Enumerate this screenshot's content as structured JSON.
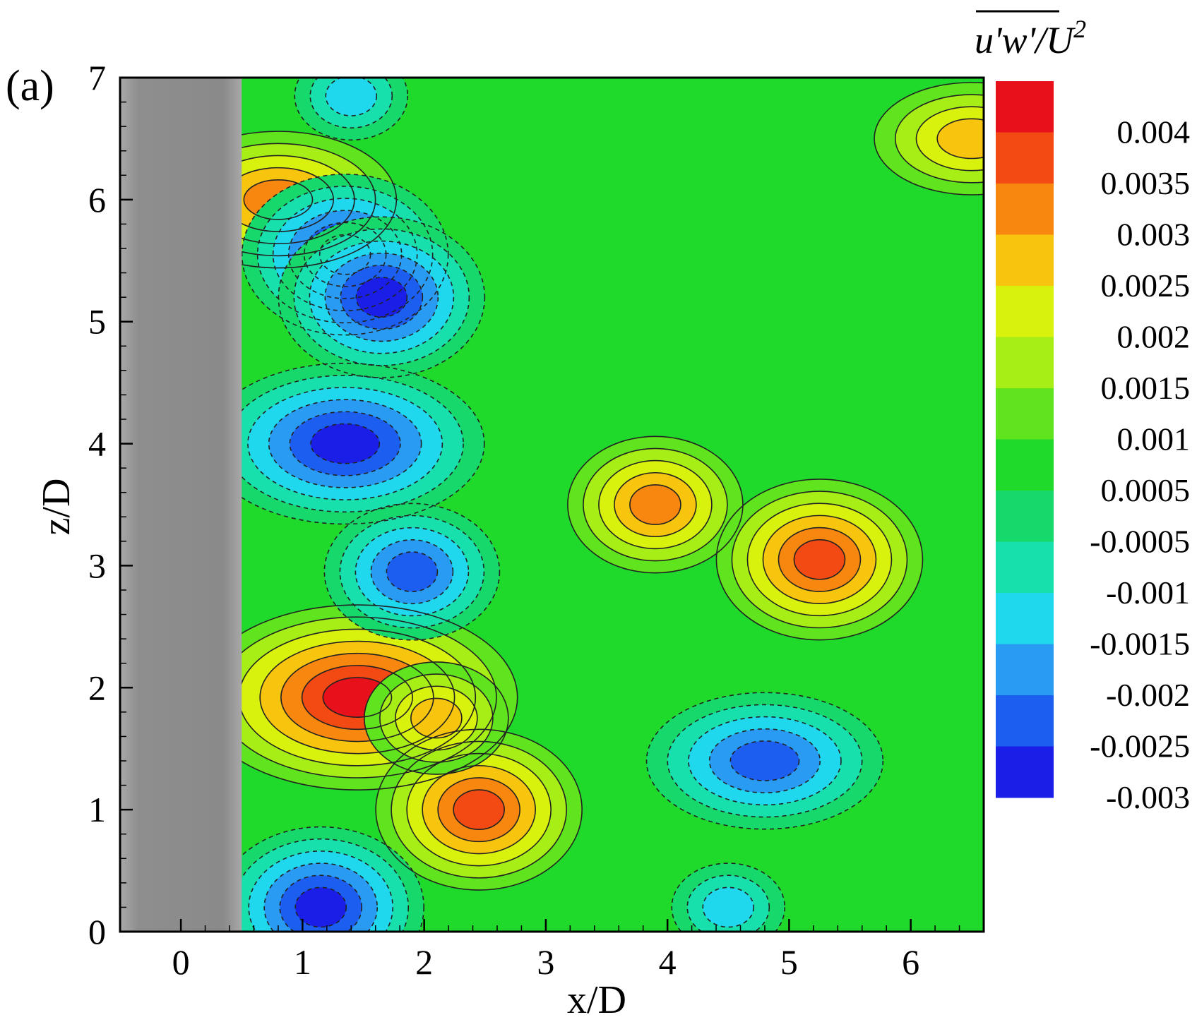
{
  "panel_label": "(a)",
  "chart_data": {
    "type": "heatmap",
    "title": "",
    "xlabel": "x/D",
    "ylabel": "z/D",
    "xlim": [
      -0.5,
      6.6
    ],
    "ylim": [
      0,
      7
    ],
    "x_ticks": [
      "0",
      "1",
      "2",
      "3",
      "4",
      "5",
      "6"
    ],
    "y_ticks": [
      "0",
      "1",
      "2",
      "3",
      "4",
      "5",
      "6",
      "7"
    ],
    "colorbar": {
      "title_main": "u'w'",
      "title_denominator": "/U",
      "title_exponent": "2",
      "levels": [
        "0.004",
        "0.0035",
        "0.003",
        "0.0025",
        "0.002",
        "0.0015",
        "0.001",
        "0.0005",
        "-0.0005",
        "-0.001",
        "-0.0015",
        "-0.002",
        "-0.0025",
        "-0.003"
      ],
      "colors": [
        "#e8101a",
        "#f24a12",
        "#f7870f",
        "#f7c40e",
        "#d9f20d",
        "#a6ee16",
        "#5fe41e",
        "#1fd92b",
        "#17d86a",
        "#18e0ad",
        "#1fd8ee",
        "#2a9bf2",
        "#1c5ff0",
        "#1a1ee6"
      ]
    },
    "obstacle": {
      "x_range": [
        -0.5,
        0.5
      ],
      "z_range": [
        0,
        7
      ],
      "color": "#8c8c8c"
    },
    "background_level": "0.0005",
    "regions": [
      {
        "label": "peak",
        "x": 1.45,
        "z": 1.92,
        "value": 0.0042
      },
      {
        "label": "peak",
        "x": 2.45,
        "z": 1.0,
        "value": 0.0036
      },
      {
        "label": "peak",
        "x": 2.1,
        "z": 1.75,
        "value": 0.0026
      },
      {
        "label": "peak",
        "x": 0.8,
        "z": 6.0,
        "value": 0.0028
      },
      {
        "label": "peak",
        "x": 5.25,
        "z": 3.05,
        "value": 0.0036
      },
      {
        "label": "peak",
        "x": 3.9,
        "z": 3.5,
        "value": 0.0027
      },
      {
        "label": "peak",
        "x": 6.5,
        "z": 6.5,
        "value": 0.0025
      },
      {
        "label": "trough",
        "x": 1.35,
        "z": 5.55,
        "value": -0.0031
      },
      {
        "label": "trough",
        "x": 1.65,
        "z": 5.2,
        "value": -0.003
      },
      {
        "label": "trough",
        "x": 1.35,
        "z": 4.0,
        "value": -0.0031
      },
      {
        "label": "trough",
        "x": 1.9,
        "z": 2.95,
        "value": -0.0022
      },
      {
        "label": "trough",
        "x": 1.15,
        "z": 0.2,
        "value": -0.0028
      },
      {
        "label": "trough",
        "x": 4.8,
        "z": 1.4,
        "value": -0.0026
      },
      {
        "label": "trough",
        "x": 4.5,
        "z": 0.2,
        "value": -0.0016
      },
      {
        "label": "trough",
        "x": 1.4,
        "z": 6.85,
        "value": -0.0016
      }
    ]
  }
}
